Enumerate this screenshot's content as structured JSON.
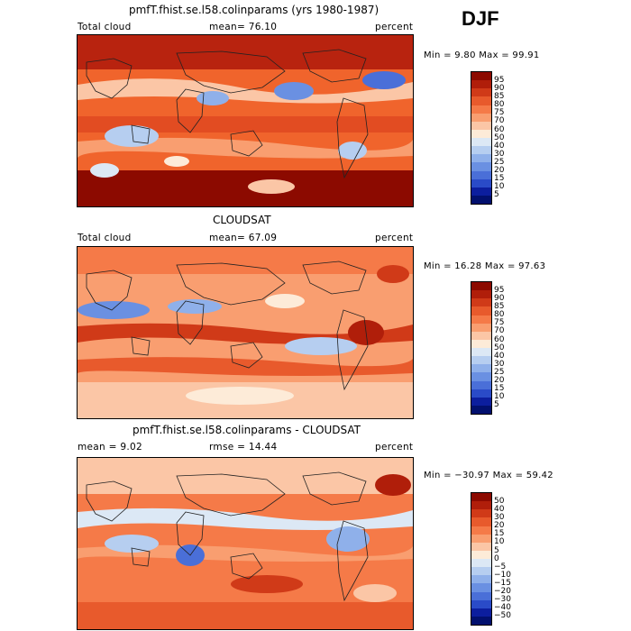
{
  "season": "DJF",
  "panels": [
    {
      "title": "pmfT.fhist.se.l58.colinparams (yrs 1980-1987)",
      "left_label": "Total cloud",
      "mid_label": "mean=  76.10",
      "right_label": "percent",
      "stats": "Min =   9.80 Max =  99.91",
      "levels": [
        "95",
        "90",
        "85",
        "80",
        "75",
        "70",
        "60",
        "50",
        "40",
        "30",
        "25",
        "20",
        "15",
        "10",
        "5"
      ]
    },
    {
      "title": "CLOUDSAT",
      "left_label": "Total cloud",
      "mid_label": "mean=  67.09",
      "right_label": "percent",
      "stats": "Min =  16.28 Max =  97.63",
      "levels": [
        "95",
        "90",
        "85",
        "80",
        "75",
        "70",
        "60",
        "50",
        "40",
        "30",
        "25",
        "20",
        "15",
        "10",
        "5"
      ]
    },
    {
      "title": "pmfT.fhist.se.l58.colinparams - CLOUDSAT",
      "left_label": "mean =    9.02",
      "mid_label": "rmse =  14.44",
      "right_label": "percent",
      "stats": "Min = −30.97 Max =  59.42",
      "levels": [
        "50",
        "40",
        "30",
        "20",
        "15",
        "10",
        "5",
        "0",
        "−5",
        "−10",
        "−15",
        "−20",
        "−30",
        "−40",
        "−50"
      ]
    }
  ],
  "colors": {
    "abs_scale": [
      "#8c0a00",
      "#b01e0a",
      "#d03a18",
      "#e85a2c",
      "#f57a48",
      "#f99e70",
      "#fbc6a6",
      "#fdebd8",
      "#dce8f5",
      "#b6cef0",
      "#8fb0ea",
      "#6a90e2",
      "#4a6fd8",
      "#2a4bc8",
      "#0c1e9e",
      "#02106e"
    ],
    "diff_scale": [
      "#8c0a00",
      "#b01e0a",
      "#d03a18",
      "#e85a2c",
      "#f57a48",
      "#f99e70",
      "#fbc6a6",
      "#fdebd8",
      "#dce8f5",
      "#b6cef0",
      "#8fb0ea",
      "#6a90e2",
      "#4a6fd8",
      "#2a4bc8",
      "#0c1e9e",
      "#02106e"
    ]
  }
}
